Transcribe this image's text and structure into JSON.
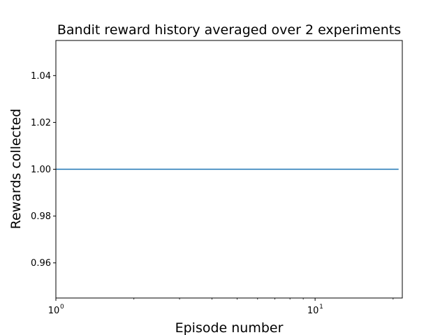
{
  "chart_data": {
    "type": "line",
    "title": "Bandit reward history averaged over 2 experiments",
    "xlabel": "Episode number",
    "ylabel": "Rewards collected",
    "xscale": "log",
    "xlim": [
      1,
      21.7
    ],
    "ylim": [
      0.945,
      1.055
    ],
    "grid": false,
    "legend": "none",
    "x_ticks": [
      {
        "value": 1,
        "base": "10",
        "exp": "0"
      },
      {
        "value": 10,
        "base": "10",
        "exp": "1"
      }
    ],
    "x_minor_ticks": [
      2,
      3,
      4,
      5,
      6,
      7,
      8,
      9,
      20
    ],
    "y_ticks": [
      {
        "value": 0.96,
        "label": "0.96"
      },
      {
        "value": 0.98,
        "label": "0.98"
      },
      {
        "value": 1.0,
        "label": "1.00"
      },
      {
        "value": 1.02,
        "label": "1.02"
      },
      {
        "value": 1.04,
        "label": "1.04"
      }
    ],
    "series": [
      {
        "color": "#1f77b4",
        "x": [
          1,
          2,
          3,
          4,
          5,
          6,
          7,
          8,
          9,
          10,
          11,
          12,
          13,
          14,
          15,
          16,
          17,
          18,
          19,
          20,
          21
        ],
        "y": [
          1,
          1,
          1,
          1,
          1,
          1,
          1,
          1,
          1,
          1,
          1,
          1,
          1,
          1,
          1,
          1,
          1,
          1,
          1,
          1,
          1
        ]
      }
    ]
  }
}
